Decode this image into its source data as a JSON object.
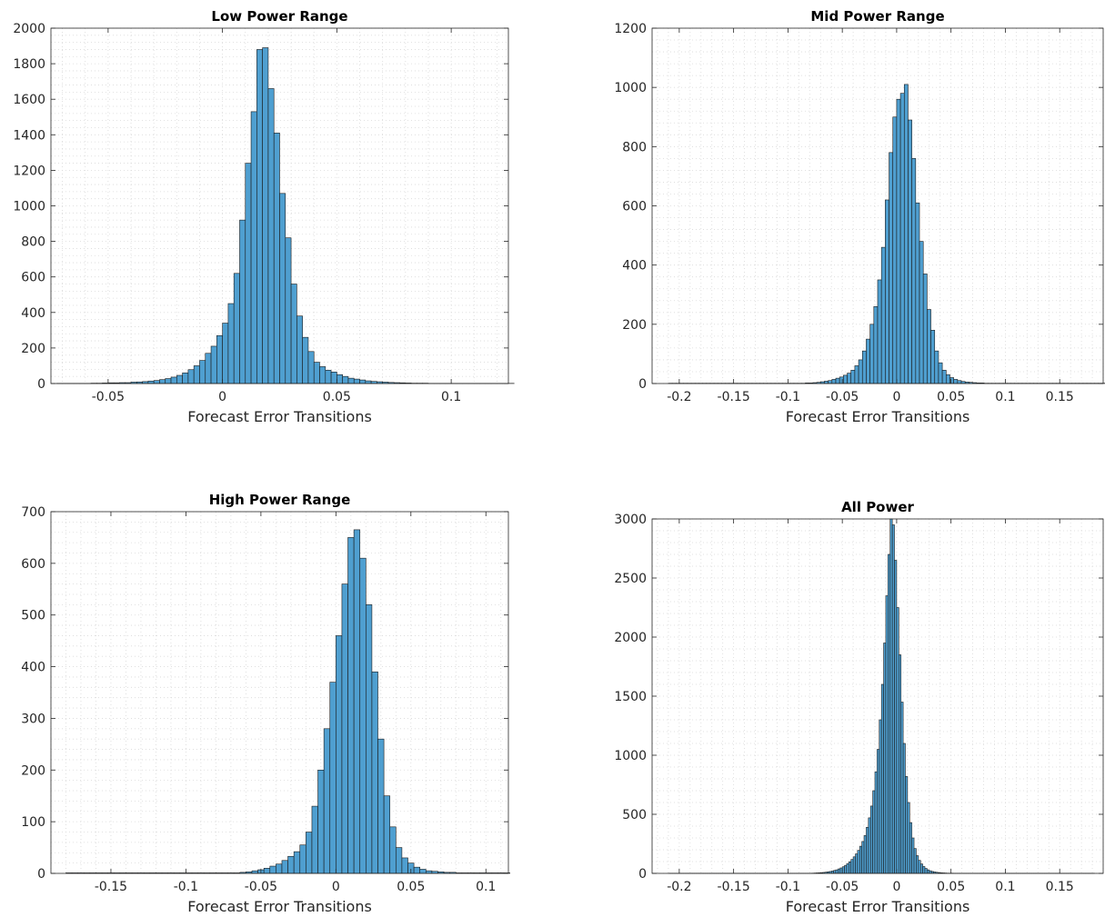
{
  "chart_data": [
    {
      "type": "bar",
      "title": "Low Power Range",
      "xlabel": "Forecast Error Transitions",
      "ylabel": "",
      "xlim": [
        -0.075,
        0.125
      ],
      "ylim": [
        0,
        2000
      ],
      "xticks": [
        -0.05,
        0,
        0.05,
        0.1
      ],
      "xtick_labels": [
        "-0.05",
        "0",
        "0.05",
        "0.1"
      ],
      "yticks": [
        0,
        200,
        400,
        600,
        800,
        1000,
        1200,
        1400,
        1600,
        1800,
        2000
      ],
      "grid": true,
      "bin_start": -0.0725,
      "bin_width": 0.0025,
      "values": [
        1,
        1,
        1,
        1,
        1,
        1,
        2,
        2,
        3,
        4,
        4,
        5,
        5,
        8,
        9,
        11,
        14,
        17,
        22,
        28,
        36,
        46,
        60,
        78,
        100,
        130,
        170,
        210,
        270,
        340,
        450,
        620,
        920,
        1240,
        1530,
        1880,
        1890,
        1660,
        1410,
        1070,
        820,
        560,
        380,
        260,
        180,
        120,
        95,
        75,
        65,
        50,
        40,
        30,
        25,
        20,
        15,
        12,
        10,
        8,
        6,
        5,
        4,
        3,
        2,
        2,
        2,
        1,
        1,
        1,
        1,
        1,
        1,
        1,
        1,
        1,
        1,
        1,
        1,
        1,
        1,
        1
      ]
    },
    {
      "type": "bar",
      "title": "Mid Power Range",
      "xlabel": "Forecast Error Transitions",
      "ylabel": "",
      "xlim": [
        -0.225,
        0.19
      ],
      "ylim": [
        0,
        1200
      ],
      "xticks": [
        -0.2,
        -0.15,
        -0.1,
        -0.05,
        0,
        0.05,
        0.1,
        0.15
      ],
      "xtick_labels": [
        "-0.2",
        "-0.15",
        "-0.1",
        "-0.05",
        "0",
        "0.05",
        "0.1",
        "0.15"
      ],
      "yticks": [
        0,
        200,
        400,
        600,
        800,
        1000,
        1200
      ],
      "grid": true,
      "bin_start": -0.21,
      "bin_width": 0.0035,
      "values": [
        1,
        1,
        1,
        1,
        1,
        1,
        1,
        1,
        1,
        1,
        1,
        1,
        1,
        1,
        1,
        1,
        1,
        1,
        1,
        1,
        1,
        1,
        1,
        1,
        1,
        1,
        1,
        1,
        1,
        1,
        1,
        1,
        1,
        1,
        1,
        1,
        2,
        2,
        3,
        4,
        6,
        8,
        10,
        14,
        18,
        22,
        28,
        35,
        45,
        60,
        80,
        110,
        150,
        200,
        260,
        350,
        460,
        620,
        780,
        900,
        960,
        980,
        1010,
        890,
        760,
        610,
        480,
        370,
        250,
        180,
        110,
        70,
        45,
        30,
        20,
        14,
        10,
        7,
        5,
        4,
        3,
        2,
        2,
        1,
        1,
        1,
        1,
        1,
        1,
        1,
        1,
        1,
        1,
        1,
        1,
        1,
        1,
        1,
        1,
        1,
        1,
        1,
        1,
        1,
        1,
        1,
        1,
        1,
        1,
        1,
        1,
        1,
        1,
        1,
        1,
        1,
        1,
        1
      ]
    },
    {
      "type": "bar",
      "title": "High Power Range",
      "xlabel": "Forecast Error Transitions",
      "ylabel": "",
      "xlim": [
        -0.19,
        0.115
      ],
      "ylim": [
        0,
        700
      ],
      "xticks": [
        -0.15,
        -0.1,
        -0.05,
        0,
        0.05,
        0.1
      ],
      "xtick_labels": [
        "-0.15",
        "-0.1",
        "-0.05",
        "0",
        "0.05",
        "0.1"
      ],
      "yticks": [
        0,
        100,
        200,
        300,
        400,
        500,
        600,
        700
      ],
      "grid": true,
      "bin_start": -0.18,
      "bin_width": 0.004,
      "values": [
        1,
        1,
        1,
        1,
        1,
        1,
        1,
        1,
        1,
        1,
        1,
        1,
        1,
        1,
        1,
        1,
        1,
        1,
        1,
        1,
        1,
        1,
        1,
        1,
        1,
        1,
        1,
        1,
        1,
        2,
        3,
        5,
        7,
        10,
        14,
        18,
        25,
        33,
        42,
        55,
        80,
        130,
        200,
        280,
        370,
        460,
        560,
        650,
        665,
        610,
        520,
        390,
        260,
        150,
        90,
        50,
        30,
        20,
        12,
        8,
        5,
        4,
        3,
        2,
        2,
        1,
        1,
        1,
        1,
        1,
        1,
        1,
        1,
        1,
        1,
        1
      ]
    },
    {
      "type": "bar",
      "title": "All Power",
      "xlabel": "Forecast Error Transitions",
      "ylabel": "",
      "xlim": [
        -0.225,
        0.19
      ],
      "ylim": [
        0,
        3000
      ],
      "xticks": [
        -0.2,
        -0.15,
        -0.1,
        -0.05,
        0,
        0.05,
        0.1,
        0.15
      ],
      "xtick_labels": [
        "-0.2",
        "-0.15",
        "-0.1",
        "-0.05",
        "0",
        "0.05",
        "0.1",
        "0.15"
      ],
      "yticks": [
        0,
        500,
        1000,
        1500,
        2000,
        2500,
        3000
      ],
      "ytick_labels": [
        "0",
        "500",
        "1000",
        "1500",
        "2000",
        "2500",
        "3000"
      ],
      "grid": true,
      "bin_start": -0.21,
      "bin_width": 0.002,
      "values": [
        1,
        1,
        1,
        1,
        1,
        1,
        1,
        1,
        1,
        1,
        1,
        1,
        1,
        1,
        1,
        1,
        1,
        1,
        1,
        1,
        1,
        1,
        1,
        1,
        1,
        1,
        1,
        1,
        1,
        1,
        1,
        1,
        1,
        1,
        1,
        1,
        1,
        1,
        1,
        1,
        1,
        1,
        1,
        1,
        1,
        1,
        1,
        1,
        1,
        1,
        1,
        1,
        1,
        1,
        1,
        1,
        1,
        1,
        1,
        1,
        1,
        1,
        1,
        1,
        1,
        1,
        2,
        3,
        4,
        5,
        6,
        8,
        10,
        13,
        16,
        20,
        25,
        30,
        38,
        46,
        56,
        68,
        82,
        98,
        118,
        140,
        165,
        195,
        230,
        270,
        320,
        390,
        470,
        570,
        700,
        860,
        1050,
        1300,
        1600,
        1950,
        2350,
        2700,
        3000,
        2950,
        2650,
        2250,
        1850,
        1450,
        1100,
        820,
        600,
        430,
        300,
        210,
        150,
        110,
        80,
        58,
        42,
        30,
        22,
        16,
        12,
        9,
        7,
        5,
        4,
        3,
        2,
        2,
        2,
        1,
        1,
        1,
        1,
        1,
        1,
        1,
        1,
        1,
        1,
        1,
        1,
        1,
        1,
        1,
        1,
        1,
        1,
        1,
        1,
        1,
        1,
        1,
        1,
        1,
        1,
        1,
        1,
        1,
        1,
        1,
        1,
        1,
        1,
        1,
        1,
        1,
        1,
        1,
        1,
        1,
        1,
        1,
        1,
        1,
        1,
        1,
        1,
        1,
        1,
        1,
        1,
        1,
        1,
        1,
        1,
        1,
        1,
        1,
        1,
        1,
        1,
        1,
        1,
        1
      ]
    }
  ],
  "colors": {
    "bar_fill": "#4f9fd0",
    "bar_edge": "#1a1a1a",
    "axis": "#262626",
    "grid": "#d9d9d9"
  }
}
